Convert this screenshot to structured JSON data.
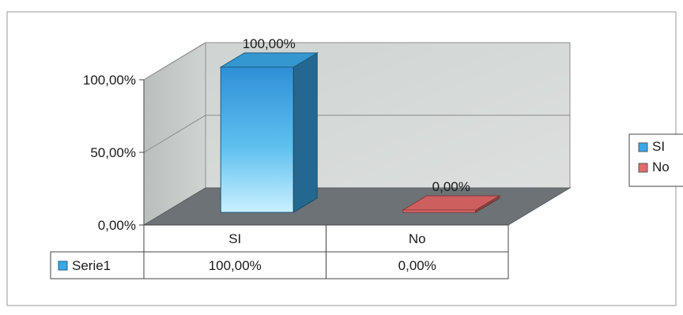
{
  "chart_data": {
    "type": "bar",
    "style": "3d-column",
    "categories": [
      "SI",
      "No"
    ],
    "series": [
      {
        "name": "Serie1",
        "values": [
          100,
          0
        ],
        "labels": [
          "100,00%",
          "0,00%"
        ]
      }
    ],
    "ylim": [
      0,
      100
    ],
    "yticks": [
      0,
      50,
      100
    ],
    "ytick_labels": [
      "0,00%",
      "50,00%",
      "100,00%"
    ],
    "grid": true,
    "legend": {
      "position": "right",
      "entries": [
        "SI",
        "No"
      ]
    },
    "data_table": {
      "row_label": "Serie1",
      "values": [
        "100,00%",
        "0,00%"
      ]
    },
    "colors": {
      "SI": "#3aa8e6",
      "No": "#e56a6a",
      "wall": "#d4d8d6",
      "floor": "#6c7276"
    }
  }
}
